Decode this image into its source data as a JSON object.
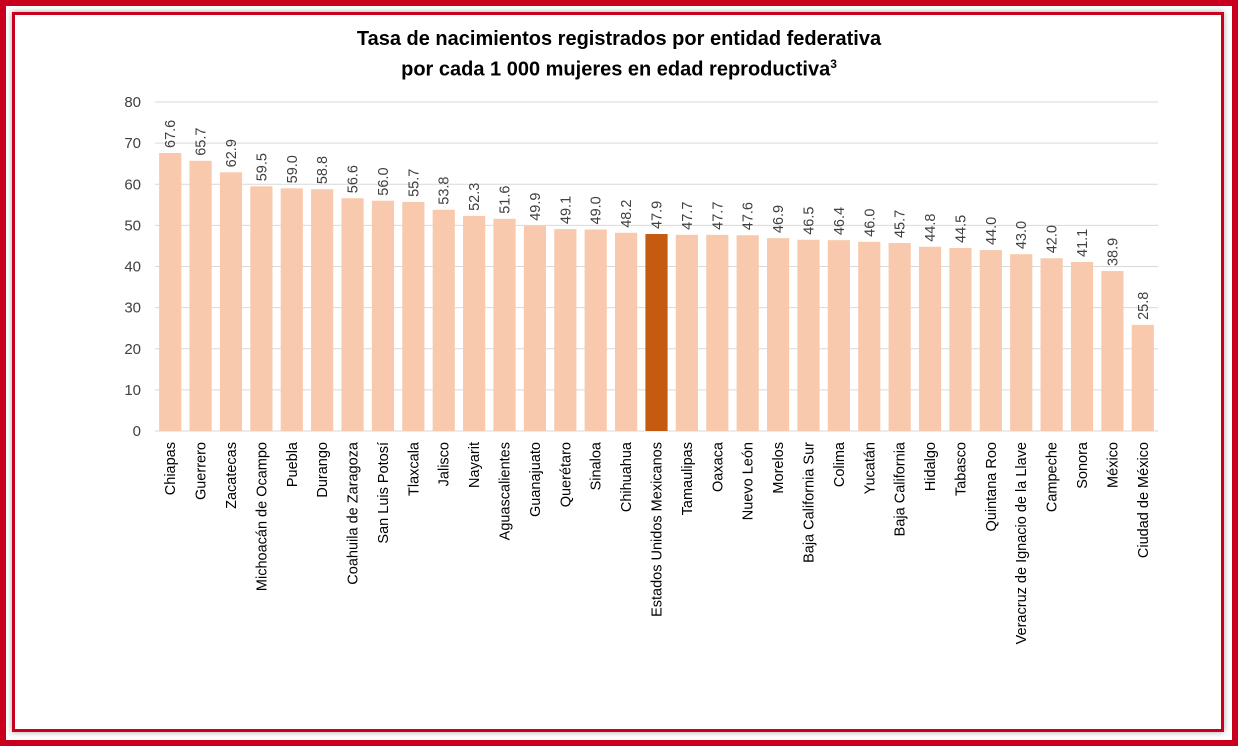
{
  "chart_data": {
    "type": "bar",
    "title_line1": "Tasa de nacimientos registrados por entidad federativa",
    "title_line2": "por cada 1 000 mujeres en edad reproductiva",
    "title_footnote": "3",
    "ylim": [
      0,
      80
    ],
    "yticks": [
      "0",
      "10",
      "20",
      "30",
      "40",
      "50",
      "60",
      "70",
      "80"
    ],
    "grid": true,
    "colors": {
      "bar": "#f8c9ac",
      "highlight": "#c55a11",
      "grid": "#d9d9d9"
    },
    "highlight_category": "Estados Unidos Mexicanos",
    "categories": [
      "Chiapas",
      "Guerrero",
      "Zacatecas",
      "Michoacán de Ocampo",
      "Puebla",
      "Durango",
      "Coahuila de Zaragoza",
      "San Luis Potosí",
      "Tlaxcala",
      "Jalisco",
      "Nayarit",
      "Aguascalientes",
      "Guanajuato",
      "Querétaro",
      "Sinaloa",
      "Chihuahua",
      "Estados Unidos Mexicanos",
      "Tamaulipas",
      "Oaxaca",
      "Nuevo León",
      "Morelos",
      "Baja California Sur",
      "Colima",
      "Yucatán",
      "Baja California",
      "Hidalgo",
      "Tabasco",
      "Quintana Roo",
      "Veracruz de Ignacio de la Llave",
      "Campeche",
      "Sonora",
      "México",
      "Ciudad de México"
    ],
    "values": [
      67.6,
      65.7,
      62.9,
      59.5,
      59.0,
      58.8,
      56.6,
      56.0,
      55.7,
      53.8,
      52.3,
      51.6,
      49.9,
      49.1,
      49.0,
      48.2,
      47.9,
      47.7,
      47.7,
      47.6,
      46.9,
      46.5,
      46.4,
      46.0,
      45.7,
      44.8,
      44.5,
      44.0,
      43.0,
      42.0,
      41.1,
      38.9,
      25.8
    ],
    "value_labels": [
      "67.6",
      "65.7",
      "62.9",
      "59.5",
      "59.0",
      "58.8",
      "56.6",
      "56.0",
      "55.7",
      "53.8",
      "52.3",
      "51.6",
      "49.9",
      "49.1",
      "49.0",
      "48.2",
      "47.9",
      "47.7",
      "47.7",
      "47.6",
      "46.9",
      "46.5",
      "46.4",
      "46.0",
      "45.7",
      "44.8",
      "44.5",
      "44.0",
      "43.0",
      "42.0",
      "41.1",
      "38.9",
      "25.8"
    ]
  }
}
